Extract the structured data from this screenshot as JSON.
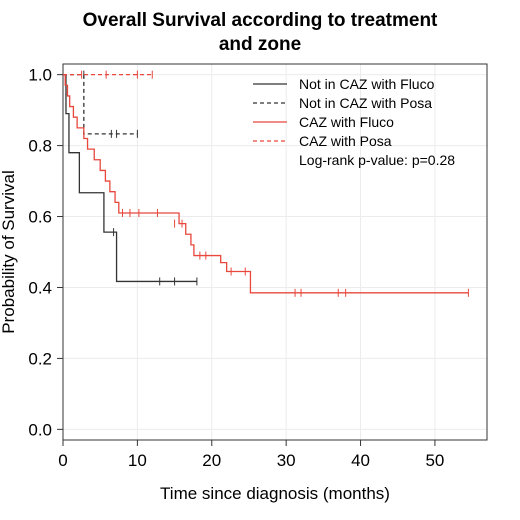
{
  "chart_data": {
    "type": "line",
    "title_lines": [
      "Overall Survival according to treatment",
      "and zone"
    ],
    "xlabel": "Time since diagnosis (months)",
    "ylabel": "Probability of Survival",
    "xlim": [
      0,
      57
    ],
    "ylim": [
      -0.03,
      1.03
    ],
    "x_ticks": [
      0,
      10,
      20,
      30,
      40,
      50
    ],
    "y_ticks": [
      0.0,
      0.2,
      0.4,
      0.6,
      0.8,
      1.0
    ],
    "y_tick_labels": [
      "0.0",
      "0.2",
      "0.4",
      "0.6",
      "0.8",
      "1.0"
    ],
    "grid": true,
    "legend_position": "top-right",
    "annotation": "Log-rank p-value: p=0.28",
    "series": [
      {
        "name": "Not in CAZ with Fluco",
        "color": "#333333",
        "dashed": false,
        "steps": [
          [
            0,
            1.0
          ],
          [
            0.4,
            0.89
          ],
          [
            0.8,
            0.78
          ],
          [
            2.2,
            0.667
          ],
          [
            5.5,
            0.556
          ],
          [
            7.2,
            0.417
          ],
          [
            18,
            0.417
          ]
        ],
        "censors": [
          [
            6.8,
            0.556
          ],
          [
            13,
            0.417
          ],
          [
            15,
            0.417
          ],
          [
            18,
            0.417
          ]
        ]
      },
      {
        "name": "Not in CAZ with Posa",
        "color": "#333333",
        "dashed": true,
        "steps": [
          [
            0,
            1.0
          ],
          [
            2.8,
            0.833
          ],
          [
            10,
            0.833
          ]
        ],
        "censors": [
          [
            2.8,
            1.0
          ],
          [
            6.5,
            0.833
          ],
          [
            7.2,
            0.833
          ],
          [
            10,
            0.833
          ]
        ]
      },
      {
        "name": "CAZ with Fluco",
        "color": "#e8473c",
        "dashed": false,
        "steps": [
          [
            0,
            1.0
          ],
          [
            0.3,
            0.97
          ],
          [
            0.6,
            0.94
          ],
          [
            0.9,
            0.91
          ],
          [
            1.4,
            0.88
          ],
          [
            1.9,
            0.85
          ],
          [
            2.8,
            0.82
          ],
          [
            3.3,
            0.79
          ],
          [
            4.2,
            0.76
          ],
          [
            5.0,
            0.73
          ],
          [
            5.7,
            0.7
          ],
          [
            6.3,
            0.67
          ],
          [
            7.0,
            0.64
          ],
          [
            7.5,
            0.61
          ],
          [
            15.6,
            0.58
          ],
          [
            16.5,
            0.55
          ],
          [
            17.2,
            0.52
          ],
          [
            17.6,
            0.49
          ],
          [
            20.0,
            0.49
          ],
          [
            21.2,
            0.47
          ],
          [
            22.0,
            0.445
          ],
          [
            25.2,
            0.385
          ],
          [
            54.5,
            0.385
          ]
        ],
        "censors": [
          [
            8.0,
            0.61
          ],
          [
            9.0,
            0.61
          ],
          [
            10.2,
            0.61
          ],
          [
            12.7,
            0.61
          ],
          [
            15.0,
            0.58
          ],
          [
            16.0,
            0.58
          ],
          [
            18.4,
            0.49
          ],
          [
            19.2,
            0.49
          ],
          [
            22.6,
            0.445
          ],
          [
            24.5,
            0.445
          ],
          [
            31.2,
            0.385
          ],
          [
            32.0,
            0.385
          ],
          [
            37.0,
            0.385
          ],
          [
            38.0,
            0.385
          ],
          [
            54.5,
            0.385
          ]
        ]
      },
      {
        "name": "CAZ with Posa",
        "color": "#e8473c",
        "dashed": true,
        "steps": [
          [
            0,
            1.0
          ],
          [
            12,
            1.0
          ]
        ],
        "censors": [
          [
            2.5,
            1.0
          ],
          [
            5.8,
            1.0
          ],
          [
            10.0,
            1.0
          ],
          [
            12.0,
            1.0
          ]
        ]
      }
    ]
  }
}
